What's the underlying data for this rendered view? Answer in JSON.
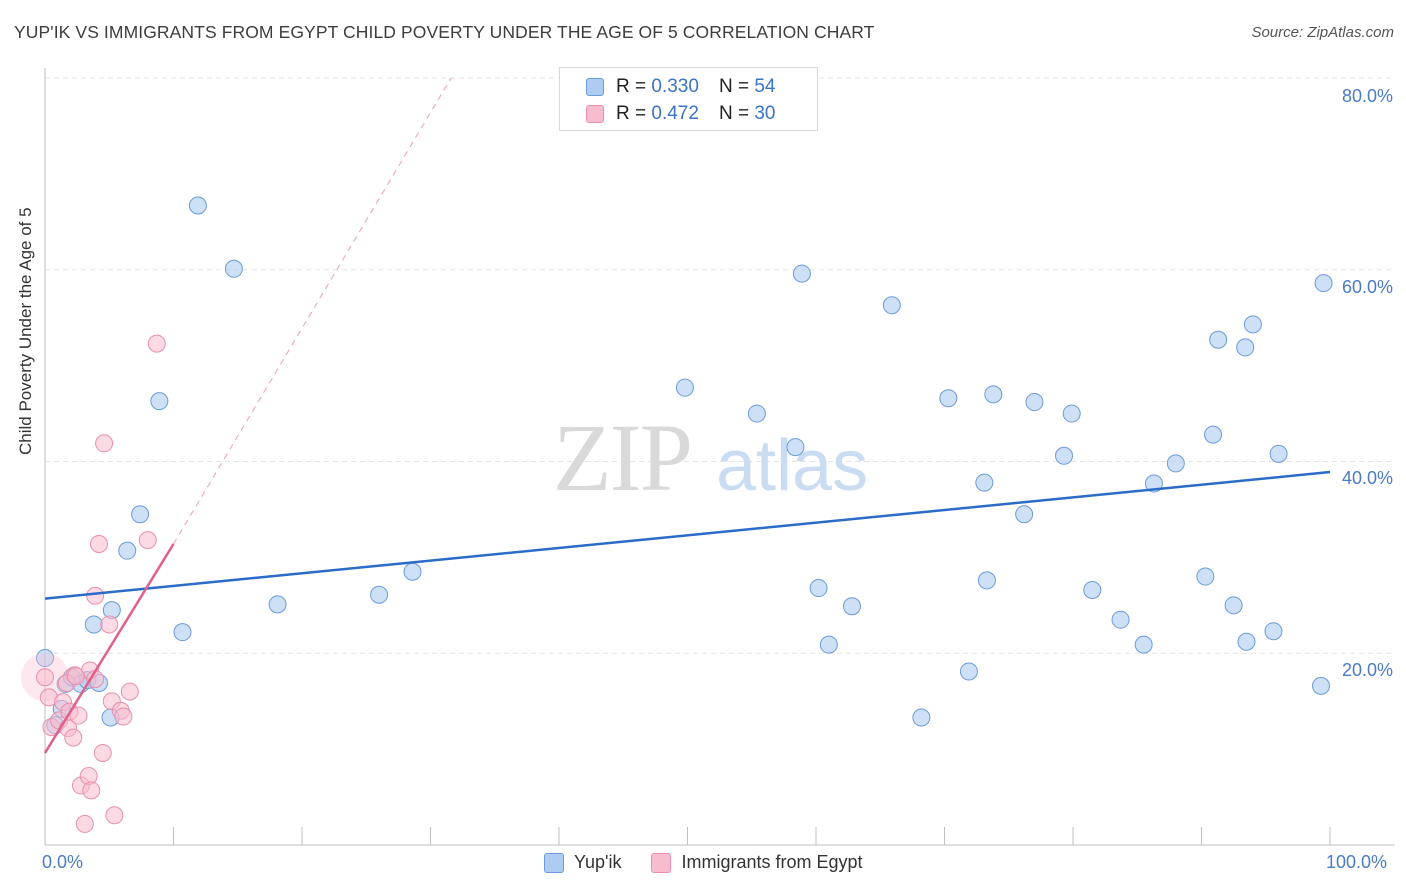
{
  "header": {
    "title": "YUP'IK VS IMMIGRANTS FROM EGYPT CHILD POVERTY UNDER THE AGE OF 5 CORRELATION CHART",
    "source": "Source: ZipAtlas.com"
  },
  "legend_top": {
    "rows": [
      {
        "r_label": "R = ",
        "r_value": "0.330",
        "n_label": "N = ",
        "n_value": "54"
      },
      {
        "r_label": "R = ",
        "r_value": "0.472",
        "n_label": "N = ",
        "n_value": "30"
      }
    ]
  },
  "legend_bottom": {
    "items": [
      {
        "label": "Yup'ik"
      },
      {
        "label": "Immigrants from Egypt"
      }
    ]
  },
  "colors": {
    "blue_fill": "#aecbf0",
    "blue_stroke": "#6b9bd8",
    "blue_line": "#2a6cc8",
    "pink_fill": "#f7bccd",
    "pink_stroke": "#e890ac",
    "pink_line": "#e0608a",
    "grid": "#e3e3e3",
    "tick_text": "#4a7cc4"
  },
  "chart_data": {
    "type": "scatter",
    "title": "YUP'IK VS IMMIGRANTS FROM EGYPT CHILD POVERTY UNDER THE AGE OF 5 CORRELATION CHART",
    "xlabel": "",
    "ylabel": "Child Poverty Under the Age of 5",
    "xlim": [
      0,
      100
    ],
    "ylim": [
      0,
      80
    ],
    "x_tick_labels": [
      "0.0%",
      "100.0%"
    ],
    "y_ticks": [
      20,
      40,
      60,
      80
    ],
    "y_tick_labels": [
      "20.0%",
      "40.0%",
      "60.0%",
      "80.0%"
    ],
    "watermark": {
      "zip": "ZIP",
      "atlas": "atlas"
    },
    "series": [
      {
        "name": "Yup'ik",
        "R": 0.33,
        "N": 54,
        "trend": {
          "x": [
            0,
            100
          ],
          "y": [
            25.7,
            38.9
          ]
        },
        "points": [
          [
            0.0,
            19.5
          ],
          [
            0.8,
            12.5
          ],
          [
            1.3,
            14.2
          ],
          [
            1.6,
            16.8
          ],
          [
            2.1,
            17.5
          ],
          [
            2.8,
            16.8
          ],
          [
            3.3,
            17.2
          ],
          [
            3.8,
            23.0
          ],
          [
            4.2,
            16.9
          ],
          [
            5.1,
            13.3
          ],
          [
            5.2,
            24.5
          ],
          [
            6.4,
            30.7
          ],
          [
            7.4,
            34.5
          ],
          [
            8.9,
            46.3
          ],
          [
            10.7,
            22.2
          ],
          [
            11.9,
            66.7
          ],
          [
            14.7,
            60.1
          ],
          [
            18.1,
            25.1
          ],
          [
            26.0,
            26.1
          ],
          [
            28.6,
            28.5
          ],
          [
            49.8,
            47.7
          ],
          [
            55.4,
            45.0
          ],
          [
            58.4,
            41.5
          ],
          [
            58.9,
            59.6
          ],
          [
            60.2,
            26.8
          ],
          [
            61.0,
            20.9
          ],
          [
            62.8,
            24.9
          ],
          [
            65.9,
            56.3
          ],
          [
            68.2,
            13.3
          ],
          [
            70.3,
            46.6
          ],
          [
            71.9,
            18.1
          ],
          [
            73.1,
            37.8
          ],
          [
            73.3,
            27.6
          ],
          [
            73.8,
            47.0
          ],
          [
            76.2,
            34.5
          ],
          [
            77.0,
            46.2
          ],
          [
            79.3,
            40.6
          ],
          [
            79.9,
            45.0
          ],
          [
            81.5,
            26.6
          ],
          [
            83.7,
            23.5
          ],
          [
            85.5,
            20.9
          ],
          [
            86.3,
            37.7
          ],
          [
            88.0,
            39.8
          ],
          [
            90.3,
            28.0
          ],
          [
            90.9,
            42.8
          ],
          [
            91.3,
            52.7
          ],
          [
            92.5,
            25.0
          ],
          [
            93.4,
            51.9
          ],
          [
            93.5,
            21.2
          ],
          [
            94.0,
            54.3
          ],
          [
            95.6,
            22.3
          ],
          [
            96.0,
            40.8
          ],
          [
            99.3,
            16.6
          ],
          [
            99.5,
            58.6
          ]
        ]
      },
      {
        "name": "Immigrants from Egypt",
        "R": 0.472,
        "N": 30,
        "trend": {
          "x": [
            0,
            10
          ],
          "y": [
            9.6,
            31.4
          ]
        },
        "trend_extended": {
          "x": [
            10,
            31.6
          ],
          "y": [
            31.4,
            80
          ]
        },
        "points": [
          [
            0.0,
            17.5
          ],
          [
            0.3,
            15.4
          ],
          [
            0.5,
            12.3
          ],
          [
            1.1,
            13.0
          ],
          [
            1.4,
            14.9
          ],
          [
            1.8,
            12.2
          ],
          [
            1.9,
            13.9
          ],
          [
            2.2,
            11.2
          ],
          [
            2.3,
            17.7
          ],
          [
            2.6,
            13.5
          ],
          [
            2.8,
            6.2
          ],
          [
            3.1,
            2.2
          ],
          [
            3.4,
            7.2
          ],
          [
            3.5,
            18.2
          ],
          [
            3.6,
            5.7
          ],
          [
            3.9,
            26.0
          ],
          [
            4.2,
            31.4
          ],
          [
            4.5,
            9.6
          ],
          [
            4.6,
            41.9
          ],
          [
            5.0,
            23.0
          ],
          [
            5.2,
            15.0
          ],
          [
            5.4,
            3.1
          ],
          [
            5.9,
            14.0
          ],
          [
            6.1,
            13.4
          ],
          [
            6.6,
            16.0
          ],
          [
            8.0,
            31.8
          ],
          [
            8.7,
            52.3
          ],
          [
            1.7,
            16.9
          ],
          [
            2.4,
            17.6
          ],
          [
            3.9,
            17.3
          ]
        ]
      }
    ]
  }
}
